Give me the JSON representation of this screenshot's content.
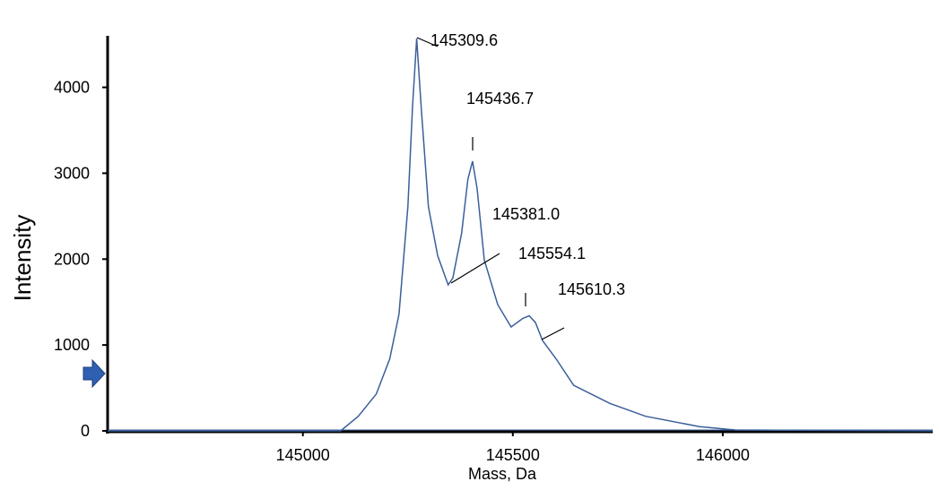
{
  "chart_data": {
    "type": "line",
    "x_label": "Mass, Da",
    "y_label": "Intensity",
    "x": [
      144535,
      145090,
      145132,
      145175,
      145207,
      145229,
      145250,
      145261,
      145271,
      145282,
      145299,
      145321,
      145346,
      145357,
      145378,
      145393,
      145404,
      145415,
      145432,
      145464,
      145496,
      145524,
      145539,
      145554,
      145571,
      145603,
      145645,
      145731,
      145816,
      145944,
      146030,
      146500
    ],
    "series": [
      {
        "name": "Intensity",
        "color": "#3b5f9a",
        "values": [
          0,
          0,
          170,
          430,
          840,
          1360,
          2610,
          3760,
          4570,
          3760,
          2610,
          2040,
          1700,
          1780,
          2300,
          2930,
          3140,
          2820,
          1990,
          1470,
          1210,
          1310,
          1340,
          1260,
          1050,
          840,
          530,
          320,
          170,
          50,
          10,
          0
        ]
      }
    ],
    "annotations": [
      "145309.6",
      "145436.7",
      "145381.0",
      "145554.1",
      "145610.3"
    ],
    "xlim": [
      144535,
      146500
    ],
    "ylim": [
      0,
      4600
    ],
    "xticks": [
      145000,
      145500,
      146000
    ],
    "yticks": [
      0,
      1000,
      2000,
      3000,
      4000
    ],
    "grid": false
  }
}
